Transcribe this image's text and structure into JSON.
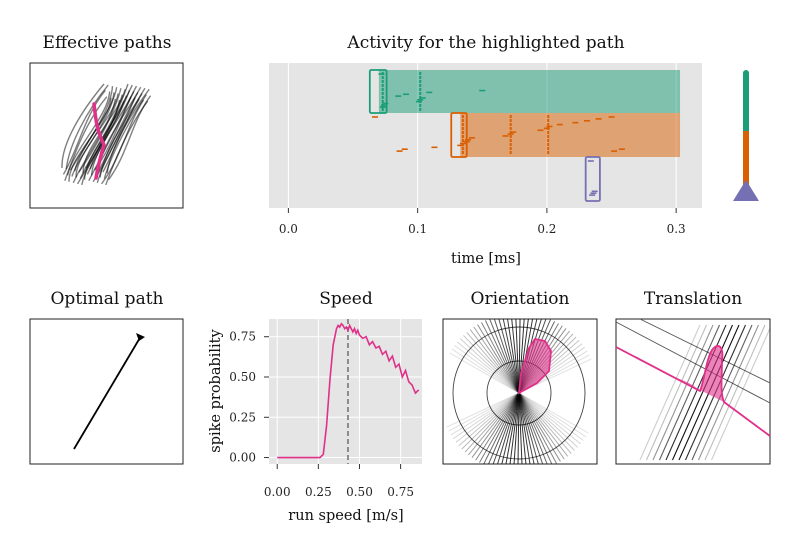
{
  "colors": {
    "highlight": "#e0308a",
    "green": "#1b9e77",
    "orange": "#d95f02",
    "purple": "#7570b3",
    "axes_bg": "#e5e5e5"
  },
  "panels": {
    "effective_paths": {
      "title": "Effective paths"
    },
    "optimal_path": {
      "title": "Optimal path"
    },
    "orientation": {
      "title": "Orientation"
    },
    "translation": {
      "title": "Translation"
    }
  },
  "chart_data": [
    {
      "type": "bar",
      "title": "Activity for the highlighted path",
      "xlabel": "time [ms]",
      "xlim": [
        -0.015,
        0.32
      ],
      "xticks": [
        0.0,
        0.1,
        0.2,
        0.3
      ],
      "xtick_labels": [
        "0.0",
        "0.1",
        "0.2",
        "0.3"
      ],
      "grid": true,
      "series": [
        {
          "color": "green",
          "bar": {
            "start": 0.07,
            "end": 0.303
          },
          "window": [
            0.063,
            0.076
          ],
          "spike_times": [
            0.072,
            0.073,
            0.074,
            0.075,
            0.101,
            0.102,
            0.104,
            0.085,
            0.091,
            0.109,
            0.15
          ]
        },
        {
          "color": "orange",
          "bar": {
            "start": 0.133,
            "end": 0.303
          },
          "window": [
            0.126,
            0.138
          ],
          "spike_times": [
            0.067,
            0.086,
            0.09,
            0.113,
            0.133,
            0.135,
            0.138,
            0.139,
            0.142,
            0.168,
            0.172,
            0.174,
            0.195,
            0.2,
            0.202,
            0.21,
            0.222,
            0.231,
            0.24,
            0.25,
            0.252,
            0.258
          ]
        },
        {
          "color": "purple",
          "bar": null,
          "window": [
            0.23,
            0.241
          ],
          "spike_times": [
            0.234,
            0.235,
            0.236,
            0.237
          ]
        }
      ]
    },
    {
      "type": "line",
      "title": "Speed",
      "xlabel": "run speed [m/s]",
      "ylabel": "spike probability",
      "xlim": [
        -0.05,
        0.88
      ],
      "ylim": [
        -0.04,
        0.86
      ],
      "xticks": [
        0.0,
        0.25,
        0.5,
        0.75
      ],
      "xtick_labels": [
        "0.00",
        "0.25",
        "0.50",
        "0.75"
      ],
      "yticks": [
        0.0,
        0.25,
        0.5,
        0.75
      ],
      "ytick_labels": [
        "0.00",
        "0.25",
        "0.50",
        "0.75"
      ],
      "vline_x": 0.43,
      "grid": true,
      "x": [
        0.0,
        0.1,
        0.2,
        0.26,
        0.28,
        0.3,
        0.32,
        0.34,
        0.36,
        0.37,
        0.38,
        0.39,
        0.4,
        0.41,
        0.42,
        0.43,
        0.44,
        0.45,
        0.46,
        0.47,
        0.48,
        0.49,
        0.5,
        0.52,
        0.54,
        0.56,
        0.58,
        0.6,
        0.62,
        0.64,
        0.66,
        0.68,
        0.7,
        0.72,
        0.74,
        0.76,
        0.78,
        0.8,
        0.82,
        0.84,
        0.86
      ],
      "y": [
        0.0,
        0.0,
        0.0,
        0.0,
        0.02,
        0.2,
        0.48,
        0.7,
        0.8,
        0.82,
        0.81,
        0.83,
        0.82,
        0.8,
        0.81,
        0.79,
        0.82,
        0.8,
        0.78,
        0.8,
        0.77,
        0.79,
        0.76,
        0.74,
        0.75,
        0.7,
        0.72,
        0.68,
        0.69,
        0.64,
        0.66,
        0.6,
        0.63,
        0.56,
        0.58,
        0.5,
        0.54,
        0.47,
        0.45,
        0.4,
        0.42
      ]
    }
  ]
}
